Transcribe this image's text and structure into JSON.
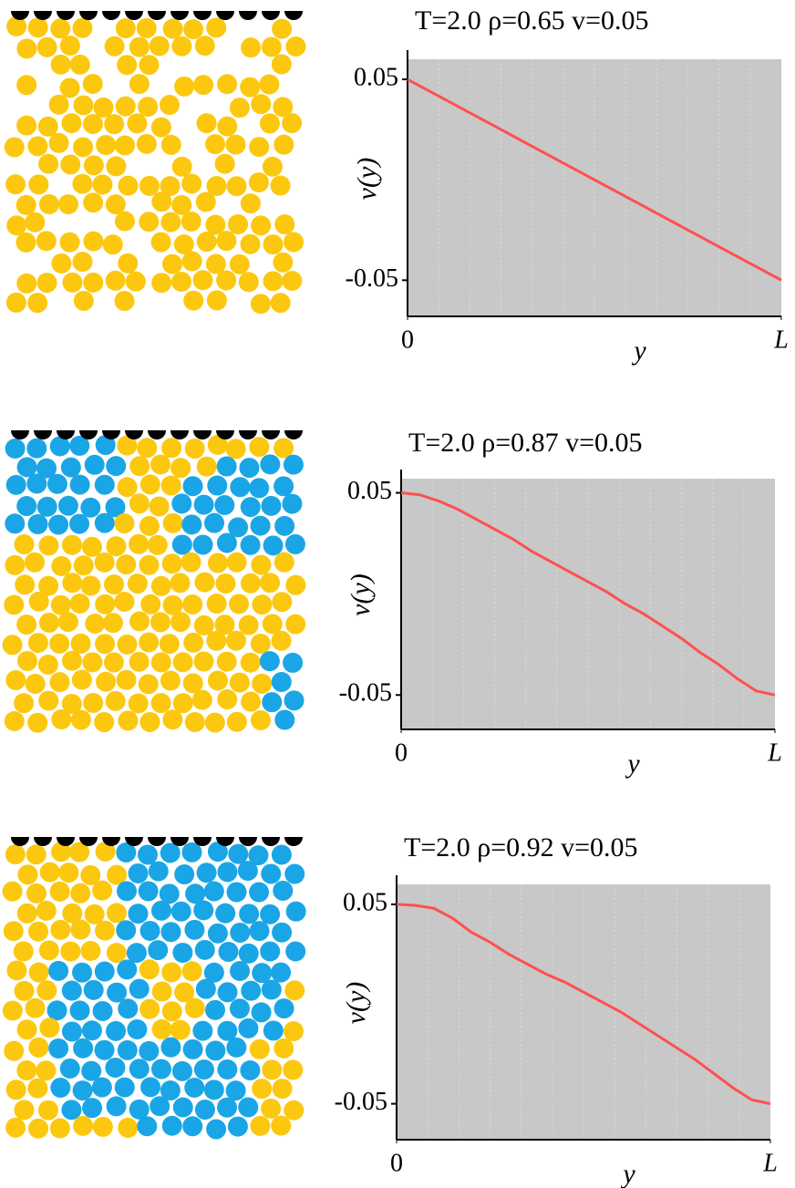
{
  "chart_data": [
    {
      "type": "line",
      "title": "T=2.0   ρ=0.65   v=0.05",
      "x_label": "y",
      "y_label": "v(y)",
      "x": [
        0,
        0.05,
        0.1,
        0.15,
        0.2,
        0.25,
        0.3,
        0.35,
        0.4,
        0.45,
        0.5,
        0.55,
        0.6,
        0.65,
        0.7,
        0.75,
        0.8,
        0.85,
        0.9,
        0.95,
        1
      ],
      "series": [
        {
          "color": "#ff5050",
          "values": [
            0.05,
            0.045,
            0.04,
            0.035,
            0.03,
            0.025,
            0.02,
            0.015,
            0.01,
            0.005,
            0,
            -0.005,
            -0.01,
            -0.015,
            -0.02,
            -0.025,
            -0.03,
            -0.035,
            -0.04,
            -0.045,
            -0.05
          ]
        }
      ],
      "xlim": [
        0,
        1
      ],
      "xticks": [
        0,
        {
          "value": 1,
          "label": "L"
        }
      ],
      "ylim": [
        -0.068,
        0.06
      ],
      "yticks": [
        0.05,
        -0.05
      ]
    },
    {
      "type": "line",
      "title": "T=2.0   ρ=0.87   v=0.05",
      "x_label": "y",
      "y_label": "v(y)",
      "x": [
        0,
        0.05,
        0.1,
        0.15,
        0.2,
        0.25,
        0.3,
        0.35,
        0.4,
        0.45,
        0.5,
        0.55,
        0.6,
        0.65,
        0.7,
        0.75,
        0.8,
        0.85,
        0.9,
        0.95,
        1
      ],
      "series": [
        {
          "color": "#ff5050",
          "values": [
            0.05,
            0.049,
            0.046,
            0.042,
            0.037,
            0.032,
            0.027,
            0.021,
            0.016,
            0.011,
            0.006,
            0.001,
            -0.005,
            -0.01,
            -0.016,
            -0.022,
            -0.029,
            -0.035,
            -0.042,
            -0.048,
            -0.05
          ]
        }
      ],
      "xlim": [
        0,
        1
      ],
      "xticks": [
        0,
        {
          "value": 1,
          "label": "L"
        }
      ],
      "ylim": [
        -0.067,
        0.057
      ],
      "yticks": [
        0.05,
        -0.05
      ]
    },
    {
      "type": "line",
      "title": "T=2.0   ρ=0.92   v=0.05",
      "x_label": "y",
      "y_label": "v(y)",
      "x": [
        0,
        0.05,
        0.1,
        0.15,
        0.2,
        0.25,
        0.3,
        0.35,
        0.4,
        0.45,
        0.5,
        0.55,
        0.6,
        0.65,
        0.7,
        0.75,
        0.8,
        0.85,
        0.9,
        0.95,
        1
      ],
      "series": [
        {
          "color": "#ff5050",
          "values": [
            0.05,
            0.0495,
            0.048,
            0.043,
            0.036,
            0.031,
            0.025,
            0.02,
            0.015,
            0.011,
            0.006,
            0.001,
            -0.004,
            -0.01,
            -0.016,
            -0.022,
            -0.028,
            -0.035,
            -0.042,
            -0.048,
            -0.05
          ]
        }
      ],
      "xlim": [
        0,
        1
      ],
      "xticks": [
        0,
        {
          "value": 1,
          "label": "L"
        }
      ],
      "ylim": [
        -0.068,
        0.06
      ],
      "yticks": [
        0.05,
        -0.05
      ]
    }
  ]
}
